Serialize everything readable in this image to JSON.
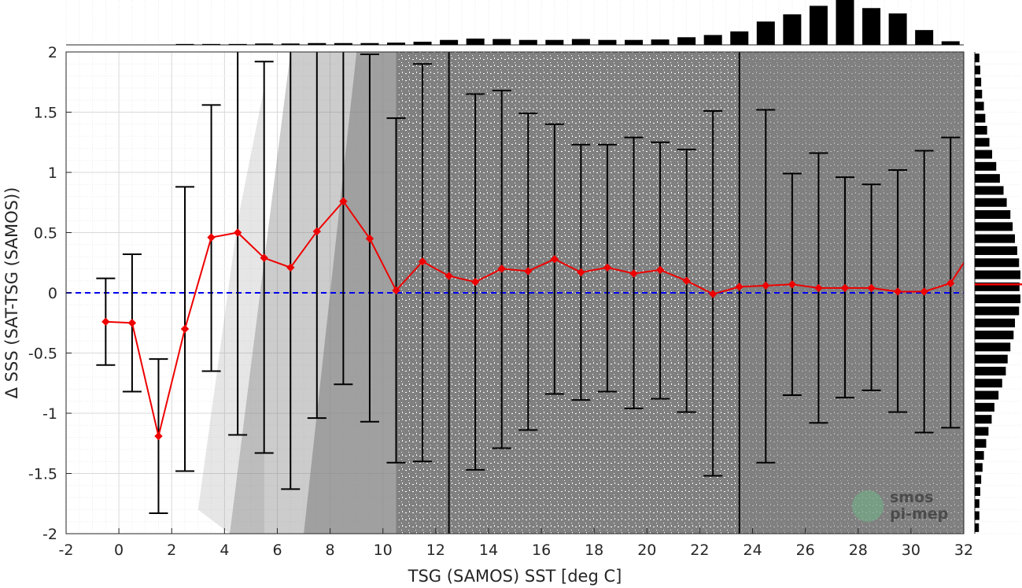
{
  "chart_data": {
    "type": "scatter",
    "xlabel": "TSG (SAMOS) SST [deg C]",
    "ylabel": "Δ SSS (SAT-TSG (SAMOS))",
    "xlim": [
      -2,
      32
    ],
    "ylim": [
      -2,
      2
    ],
    "x_ticks": [
      "-2",
      "0",
      "2",
      "4",
      "6",
      "8",
      "10",
      "12",
      "14",
      "16",
      "18",
      "20",
      "22",
      "24",
      "26",
      "28",
      "30",
      "32"
    ],
    "y_ticks": [
      "-2",
      "-1.5",
      "-1",
      "-0.5",
      "0",
      "0.5",
      "1",
      "1.5",
      "2"
    ],
    "grid": true,
    "scatter_color": "#808080",
    "reference_line": {
      "y": 0,
      "style": "dashed",
      "color": "#0000ee"
    },
    "binned_mean": {
      "color": "#ee0000",
      "x": [
        -0.5,
        0.5,
        1.5,
        2.5,
        3.5,
        4.5,
        5.5,
        6.5,
        7.5,
        8.5,
        9.5,
        10.5,
        11.5,
        12.5,
        13.5,
        14.5,
        15.5,
        16.5,
        17.5,
        18.5,
        19.5,
        20.5,
        21.5,
        22.5,
        23.5,
        24.5,
        25.5,
        26.5,
        27.5,
        28.5,
        29.5,
        30.5,
        31.5
      ],
      "mean": [
        -0.24,
        -0.25,
        -1.19,
        -0.3,
        0.46,
        0.5,
        0.29,
        0.21,
        0.51,
        0.76,
        0.45,
        0.02,
        0.26,
        0.14,
        0.09,
        0.2,
        0.18,
        0.28,
        0.17,
        0.21,
        0.16,
        0.19,
        0.1,
        -0.01,
        0.05,
        0.06,
        0.07,
        0.04,
        0.04,
        0.04,
        0.01,
        0.01,
        0.08
      ],
      "lower": [
        -0.6,
        -0.82,
        -1.83,
        -1.48,
        -0.65,
        -1.18,
        -1.33,
        -1.63,
        -1.04,
        -0.76,
        -1.07,
        -1.41,
        -1.4,
        -2.05,
        -1.47,
        -1.29,
        -1.14,
        -0.84,
        -0.89,
        -0.82,
        -0.96,
        -0.88,
        -0.99,
        -1.52,
        -2.05,
        -1.41,
        -0.85,
        -1.08,
        -0.87,
        -0.81,
        -0.99,
        -1.16,
        -1.12
      ],
      "upper": [
        0.12,
        0.32,
        -0.55,
        0.88,
        1.56,
        2.05,
        1.92,
        2.05,
        2.05,
        2.05,
        1.98,
        1.45,
        1.9,
        2.05,
        1.65,
        1.68,
        1.49,
        1.4,
        1.23,
        1.23,
        1.29,
        1.25,
        1.19,
        1.51,
        2.05,
        1.52,
        0.99,
        1.16,
        0.96,
        0.9,
        1.02,
        1.18,
        1.29
      ],
      "end_value": 0.25
    },
    "histogram_top": {
      "bin_centers": [
        -0.5,
        0.5,
        1.5,
        2.5,
        3.5,
        4.5,
        5.5,
        6.5,
        7.5,
        8.5,
        9.5,
        10.5,
        11.5,
        12.5,
        13.5,
        14.5,
        15.5,
        16.5,
        17.5,
        18.5,
        19.5,
        20.5,
        21.5,
        22.5,
        23.5,
        24.5,
        25.5,
        26.5,
        27.5,
        28.5,
        29.5,
        30.5,
        31.5
      ],
      "relative_counts": [
        0.0,
        0.0,
        0.0,
        0.02,
        0.02,
        0.02,
        0.03,
        0.03,
        0.04,
        0.04,
        0.04,
        0.05,
        0.07,
        0.11,
        0.14,
        0.13,
        0.11,
        0.11,
        0.13,
        0.11,
        0.11,
        0.12,
        0.17,
        0.22,
        0.3,
        0.52,
        0.68,
        0.87,
        1.0,
        0.82,
        0.7,
        0.33,
        0.08
      ]
    },
    "histogram_right": {
      "bin_centers": [
        1.95,
        1.85,
        1.75,
        1.65,
        1.55,
        1.45,
        1.35,
        1.25,
        1.15,
        1.05,
        0.95,
        0.85,
        0.75,
        0.65,
        0.55,
        0.45,
        0.35,
        0.25,
        0.15,
        0.05,
        -0.05,
        -0.15,
        -0.25,
        -0.35,
        -0.45,
        -0.55,
        -0.65,
        -0.75,
        -0.85,
        -0.95,
        -1.05,
        -1.15,
        -1.25,
        -1.35,
        -1.45,
        -1.55,
        -1.65,
        -1.75,
        -1.85,
        -1.95
      ],
      "relative_counts": [
        0.1,
        0.12,
        0.14,
        0.16,
        0.2,
        0.23,
        0.27,
        0.32,
        0.38,
        0.47,
        0.55,
        0.63,
        0.7,
        0.78,
        0.83,
        0.88,
        0.93,
        0.97,
        1.0,
        0.98,
        1.0,
        0.97,
        0.88,
        0.85,
        0.78,
        0.72,
        0.68,
        0.6,
        0.52,
        0.43,
        0.37,
        0.3,
        0.25,
        0.2,
        0.17,
        0.14,
        0.12,
        0.1,
        0.1,
        0.09
      ],
      "mean_marker_y": 0.07,
      "mean_marker_color": "#ee0000"
    }
  },
  "watermark": {
    "line1": "smos",
    "line2": "pi-mep"
  }
}
